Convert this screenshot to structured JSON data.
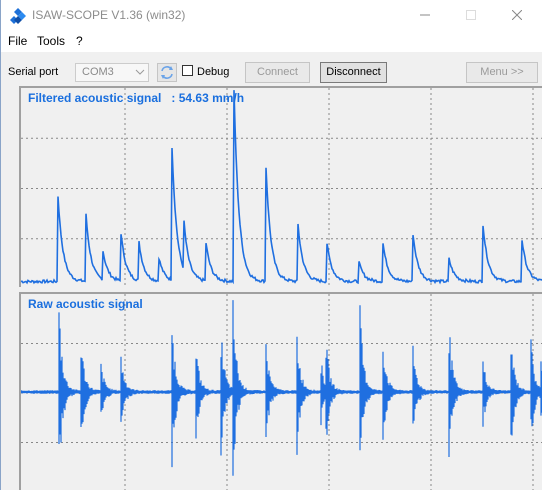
{
  "window": {
    "title": "ISAW-SCOPE V1.36 (win32)",
    "icon": "diamond-app-icon"
  },
  "menu": [
    "File",
    "Tools",
    "?"
  ],
  "toolbar": {
    "serial_port_label": "Serial port",
    "serial_port_value": "COM3",
    "debug_label": "Debug",
    "debug_checked": false,
    "connect_label": "Connect",
    "disconnect_label": "Disconnect",
    "menu_label": "Menu >>"
  },
  "panels": {
    "filtered": {
      "title_prefix": "Filtered acoustic signal",
      "separator": ":",
      "value": "54.63",
      "unit": "mm/h"
    },
    "raw": {
      "title": "Raw acoustic signal"
    }
  },
  "colors": {
    "signal": "#1f6fe0",
    "title_text": "#1a6fde",
    "grid": "#888888"
  },
  "chart_data": [
    {
      "type": "line",
      "title": "Filtered acoustic signal : 54.63 mm/h",
      "grid": true,
      "peaks": [
        0.45,
        0.35,
        0.15,
        0.25,
        0.2,
        0.12,
        0.7,
        0.25,
        0.2,
        1.0,
        0.6,
        0.3,
        0.2,
        0.1,
        0.2,
        0.25,
        0.12,
        0.3,
        0.22
      ]
    },
    {
      "type": "line",
      "title": "Raw acoustic signal",
      "grid": true,
      "bursts": [
        1.0,
        0.6,
        0.3,
        0.4,
        0.8,
        0.5,
        0.7,
        1.0,
        0.55,
        0.65,
        0.35,
        0.5,
        0.9,
        0.6,
        0.5,
        0.75,
        0.35,
        0.6,
        0.55,
        0.3
      ]
    }
  ]
}
